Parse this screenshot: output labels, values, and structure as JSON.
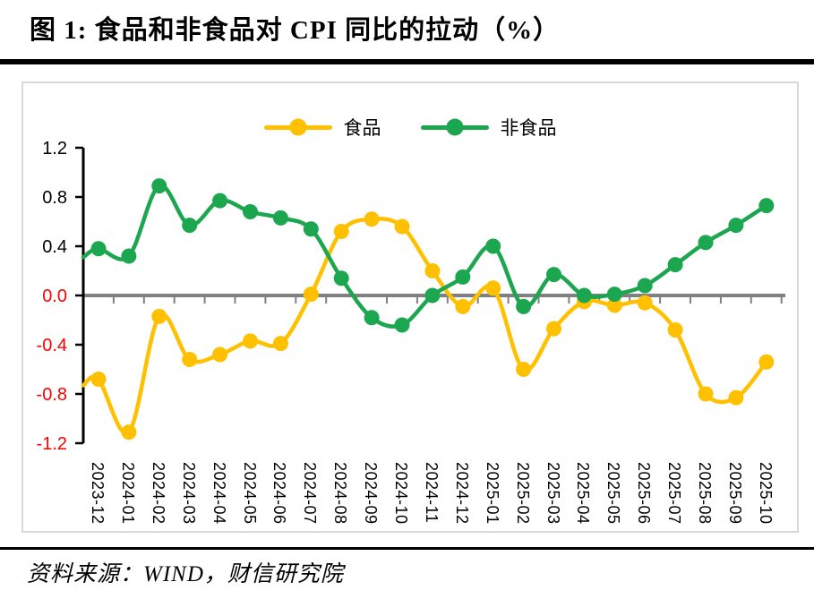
{
  "page": {
    "figure_title": "图 1:  食品和非食品对 CPI 同比的拉动（%）",
    "source_note": "资料来源：WIND，财信研究院"
  },
  "chart_data": {
    "type": "line",
    "title": "食品和非食品对 CPI 同比的拉动（%）",
    "smooth_lines": true,
    "markers": "circle",
    "grid": "none",
    "legend_position": "top-center",
    "categories": [
      "2023-12",
      "2024-01",
      "2024-02",
      "2024-03",
      "2024-04",
      "2024-05",
      "2024-06",
      "2024-07",
      "2024-08",
      "2024-09",
      "2024-10",
      "2024-11",
      "2024-12",
      "2025-01",
      "2025-02",
      "2025-03",
      "2025-04",
      "2025-05",
      "2025-06",
      "2025-07",
      "2025-08",
      "2025-09",
      "2025-10"
    ],
    "series": [
      {
        "name": "食品",
        "color": "#FFC000",
        "values": [
          -0.68,
          -1.11,
          -0.17,
          -0.52,
          -0.48,
          -0.37,
          -0.39,
          0.01,
          0.52,
          0.62,
          0.56,
          0.2,
          -0.09,
          0.06,
          -0.6,
          -0.27,
          -0.05,
          -0.08,
          -0.06,
          -0.28,
          -0.8,
          -0.83,
          -0.54
        ],
        "clipped_lead_value_at_axis": -0.73
      },
      {
        "name": "非食品",
        "color": "#1CA64F",
        "values": [
          0.38,
          0.32,
          0.89,
          0.57,
          0.77,
          0.68,
          0.63,
          0.54,
          0.14,
          -0.18,
          -0.24,
          0.0,
          0.15,
          0.4,
          -0.09,
          0.17,
          0.0,
          0.01,
          0.08,
          0.25,
          0.43,
          0.57,
          0.73
        ],
        "clipped_lead_value_at_axis": 0.31
      }
    ],
    "ylim": [
      -1.2,
      1.2
    ],
    "ytick_step": 0.4,
    "ytick_labels": [
      "1.2",
      "0.8",
      "0.4",
      "0.0",
      "-0.4",
      "-0.8",
      "-1.2"
    ],
    "axis_colors": {
      "positive_label": "#000000",
      "negative_label": "#FF0000",
      "axis_line": "#000000",
      "zero_line": "#808080",
      "panel_border": "#D9D9D9"
    }
  }
}
